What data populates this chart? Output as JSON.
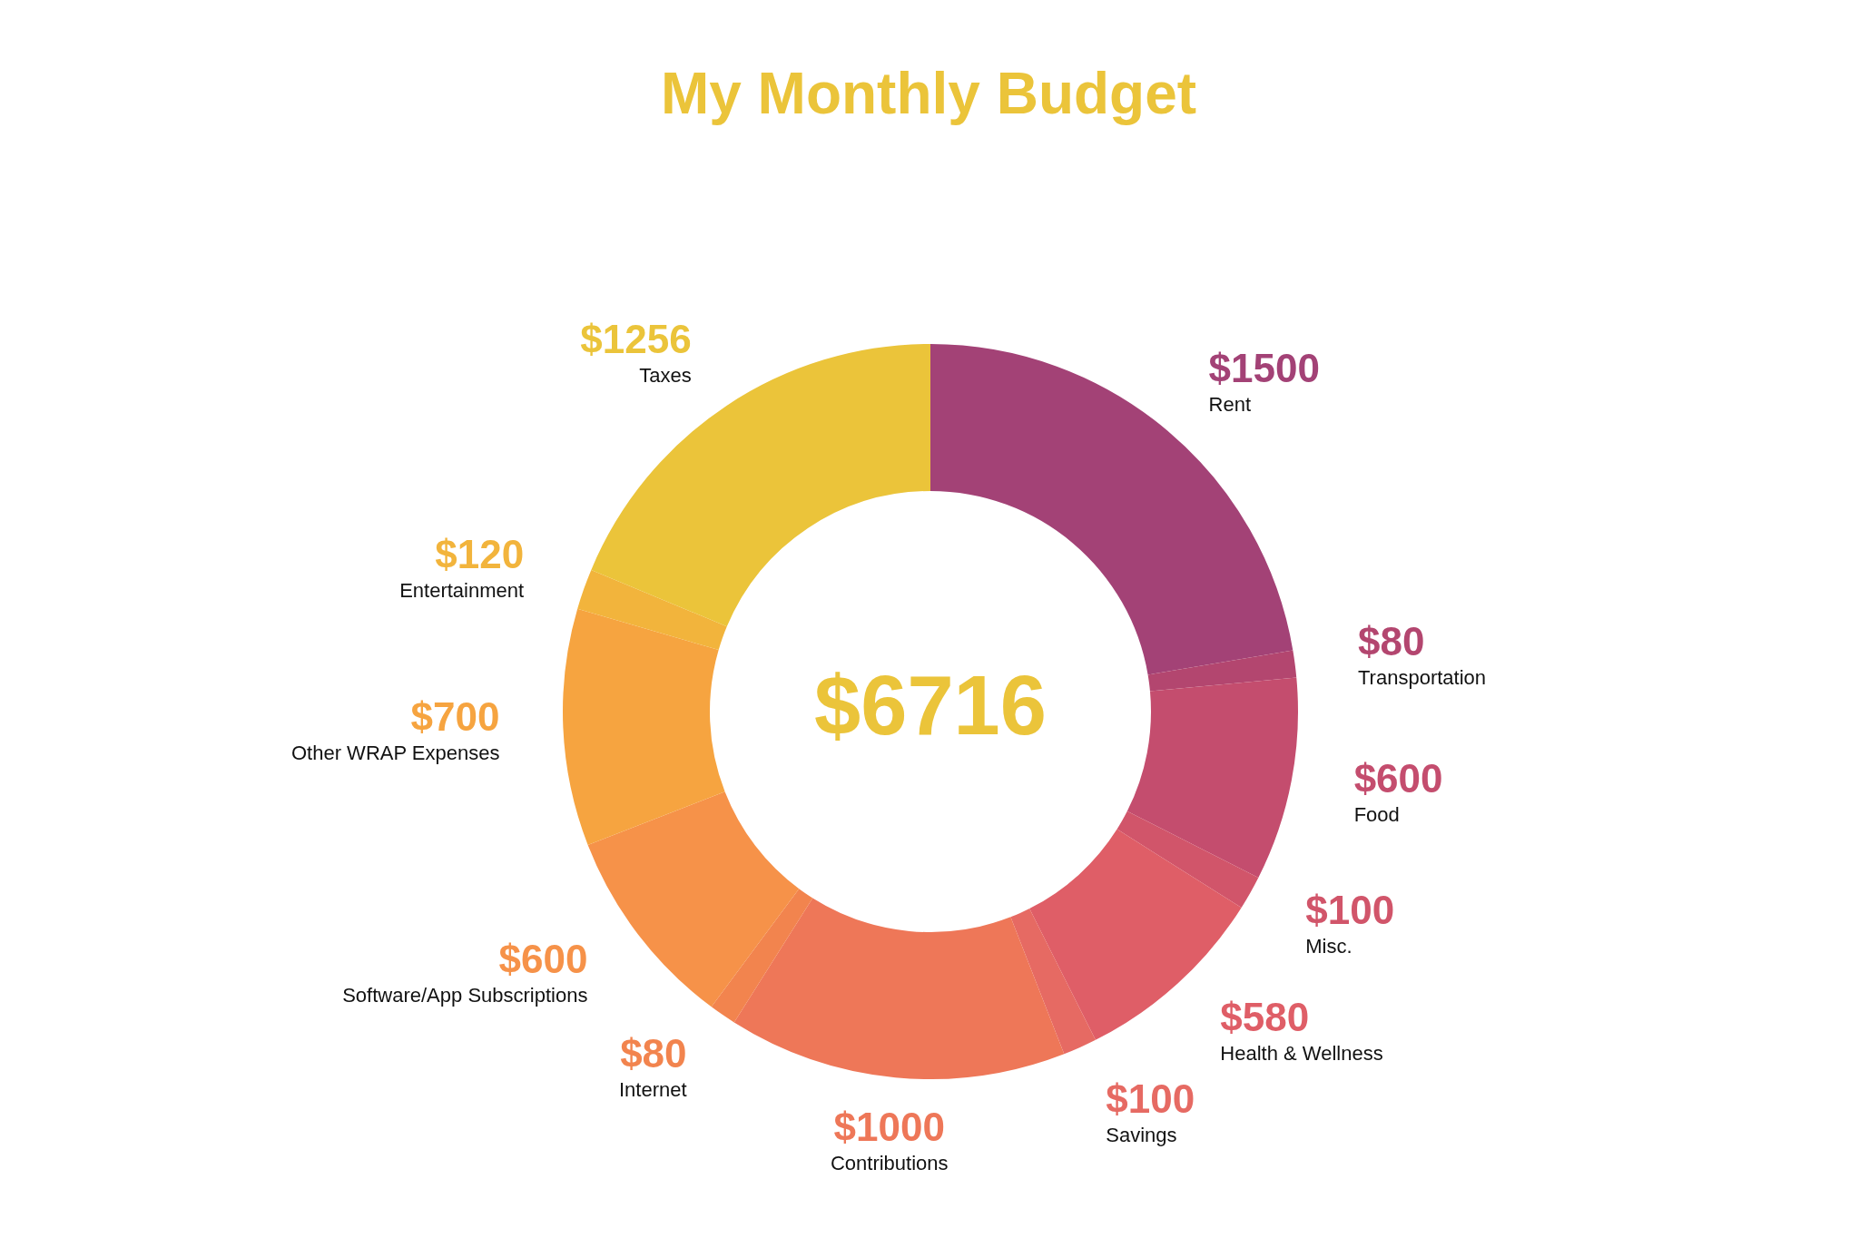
{
  "chart_data": {
    "type": "donut",
    "title": "My Monthly Budget",
    "categories": [
      "Rent",
      "Transportation",
      "Food",
      "Misc.",
      "Health & Wellness",
      "Savings",
      "Contributions",
      "Internet",
      "Software/App Subscriptions",
      "Other WRAP Expenses",
      "Entertainment",
      "Taxes"
    ],
    "values": [
      1500,
      80,
      600,
      100,
      580,
      100,
      1000,
      80,
      600,
      700,
      120,
      1256
    ],
    "colors": [
      "#a34276",
      "#b3466f",
      "#c44d6e",
      "#d1556a",
      "#df5e67",
      "#e66a63",
      "#ee7758",
      "#f2844e",
      "#f69249",
      "#f6a440",
      "#f2b43c",
      "#ebc43a"
    ],
    "value_labels": [
      "$1500",
      "$80",
      "$600",
      "$100",
      "$580",
      "$100",
      "$1000",
      "$80",
      "$600",
      "$700",
      "$120",
      "$1256"
    ],
    "annotations": [
      "$6716"
    ]
  }
}
